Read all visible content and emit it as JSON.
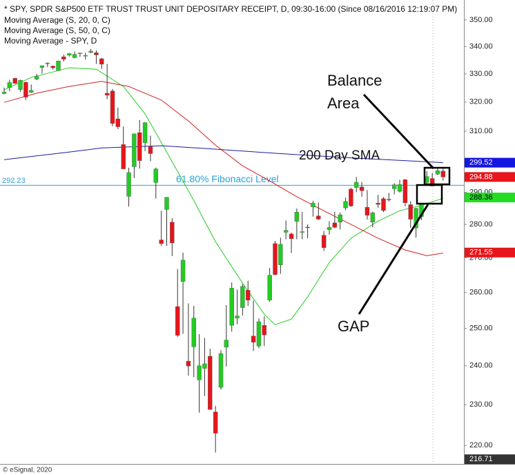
{
  "chart_data": {
    "type": "candlestick",
    "header": [
      "* SPY, SPDR S&P500 ETF TRUST TRUST UNIT DEPOSITARY RECEIPT, D, 09:30-16:00 (Since 08/16/2016 12:19:07 PM)"
    ],
    "footer": "© eSignal, 2020",
    "log_scale": true,
    "ylim": [
      215.6,
      357.7
    ],
    "yticks": [
      {
        "value": 350,
        "label": "350.00"
      },
      {
        "value": 340,
        "label": "340.00"
      },
      {
        "value": 330,
        "label": "330.00"
      },
      {
        "value": 320,
        "label": "320.00"
      },
      {
        "value": 310,
        "label": "310.00"
      },
      {
        "value": 300,
        "label": "300.00"
      },
      {
        "value": 290,
        "label": "290.00"
      },
      {
        "value": 280,
        "label": "280.00"
      },
      {
        "value": 270,
        "label": "270.00"
      },
      {
        "value": 260,
        "label": "260.00"
      },
      {
        "value": 250,
        "label": "250.00"
      },
      {
        "value": 240,
        "label": "240.00"
      },
      {
        "value": 230,
        "label": "230.00"
      },
      {
        "value": 220,
        "label": "220.00"
      }
    ],
    "up_color": "#22cc22",
    "down_color": "#e8151b",
    "open": [
      323.0,
      325.1,
      328.4,
      324.4,
      327.0,
      323.4,
      328.1,
      332.3,
      333.9,
      332.8,
      331.2,
      336.2,
      336.8,
      335.9,
      337.5,
      336.5,
      337.8,
      337.7,
      335.5,
      323.1,
      323.9,
      314.2,
      305.5,
      288.7,
      298.2,
      309.5,
      306.1,
      304.9,
      293.1,
      275.3,
      284.6,
      280.7,
      256.0,
      263.1,
      241.2,
      245.0,
      236.3,
      239.3,
      242.5,
      228.2,
      234.4,
      244.9,
      250.8,
      252.8,
      255.7,
      260.6,
      247.9,
      245.2,
      250.8,
      257.8,
      274.2,
      267.9,
      277.6,
      277.1,
      280.9,
      277.6,
      279.2,
      285.4,
      282.6,
      276.7,
      278.4,
      280.5,
      280.7,
      285.1,
      291.0,
      291.5,
      291.7,
      285.3,
      280.7,
      286.6,
      288.0,
      287.8,
      291.1,
      290.3,
      294.0,
      286.1,
      278.95,
      282.4,
      293.1,
      294.4,
      295.8,
      296.8
    ],
    "high": [
      325.1,
      327.9,
      328.6,
      327.9,
      327.2,
      326.2,
      330.0,
      333.1,
      334.2,
      333.0,
      334.8,
      337.0,
      337.6,
      338.1,
      337.7,
      337.7,
      339.1,
      338.6,
      335.8,
      333.6,
      324.6,
      318.1,
      311.6,
      297.9,
      309.2,
      313.8,
      313.1,
      308.5,
      297.9,
      284.2,
      288.5,
      281.9,
      266.7,
      271.5,
      256.9,
      256.2,
      248.4,
      247.4,
      244.5,
      229.7,
      244.1,
      256.4,
      262.8,
      260.8,
      262.4,
      263.3,
      257.7,
      252.7,
      253.3,
      267.0,
      275.0,
      276.0,
      281.2,
      277.5,
      284.9,
      283.9,
      280.0,
      287.3,
      286.8,
      278.0,
      281.0,
      283.9,
      283.7,
      288.3,
      291.4,
      294.9,
      293.3,
      290.7,
      283.9,
      289.2,
      288.5,
      289.8,
      292.9,
      294.0,
      294.2,
      287.2,
      285.1,
      286.3,
      296.75,
      296.2,
      297.9,
      297.7
    ],
    "low": [
      322.7,
      323.8,
      326.4,
      323.6,
      320.7,
      323.2,
      327.7,
      330.1,
      332.5,
      331.6,
      331.2,
      334.5,
      336.3,
      335.6,
      336.2,
      335.2,
      337.5,
      333.6,
      331.8,
      321.0,
      311.7,
      310.7,
      297.5,
      285.5,
      294.5,
      297.6,
      303.3,
      300.0,
      288.0,
      273.5,
      273.5,
      270.5,
      247.7,
      248.5,
      237.4,
      237.0,
      228.0,
      232.2,
      228.8,
      218.3,
      233.8,
      239.8,
      249.1,
      251.1,
      253.5,
      256.2,
      243.9,
      244.6,
      245.2,
      257.3,
      264.9,
      265.3,
      275.5,
      271.4,
      275.5,
      275.5,
      275.8,
      282.4,
      281.4,
      272.0,
      276.9,
      278.9,
      278.5,
      284.4,
      285.4,
      290.0,
      288.6,
      281.5,
      279.1,
      285.1,
      283.8,
      287.1,
      289.3,
      289.9,
      285.6,
      278.97,
      276.0,
      281.3,
      292.7,
      291.95,
      295.5,
      293.7
    ],
    "close": [
      323.5,
      326.9,
      326.6,
      327.7,
      321.7,
      324.1,
      329.1,
      332.9,
      333.9,
      332.2,
      334.7,
      335.3,
      337.4,
      337.1,
      337.6,
      336.7,
      338.3,
      336.9,
      333.5,
      322.4,
      312.6,
      311.5,
      297.5,
      296.3,
      309.1,
      300.2,
      312.9,
      302.5,
      297.5,
      274.2,
      288.4,
      274.4,
      248.1,
      269.3,
      239.9,
      252.8,
      240.0,
      240.5,
      228.8,
      222.95,
      243.2,
      246.8,
      261.2,
      253.4,
      261.7,
      257.8,
      246.2,
      251.8,
      248.2,
      264.9,
      265.1,
      274.0,
      278.2,
      275.7,
      283.8,
      277.8,
      279.1,
      286.6,
      281.6,
      273.0,
      279.1,
      279.1,
      282.97,
      287.1,
      285.7,
      293.2,
      290.5,
      282.8,
      283.6,
      286.2,
      284.3,
      287.7,
      292.4,
      292.5,
      286.7,
      281.6,
      284.97,
      286.3,
      295.0,
      291.97,
      296.9,
      294.88
    ],
    "lines": [
      {
        "name": "Moving Average (S, 20, 0, C)",
        "color": "#22cc22",
        "x": [
          0,
          5,
          12,
          17,
          22,
          26,
          30,
          35,
          39,
          44,
          48,
          50,
          53,
          56,
          60,
          64,
          69,
          73,
          77,
          81
        ],
        "values": [
          324.3,
          328.7,
          332.2,
          331.7,
          325.5,
          315.9,
          303.0,
          287.4,
          274.8,
          262.6,
          253.9,
          251.0,
          252.5,
          258.7,
          268.6,
          275.8,
          281.0,
          284.2,
          285.9,
          288.1
        ]
      },
      {
        "name": "Moving Average (S, 50, 0, C)",
        "color": "#d21f1f",
        "x": [
          0,
          6,
          12,
          18,
          23,
          29,
          34,
          39,
          44,
          49,
          54,
          59,
          64,
          69,
          74,
          78,
          81
        ],
        "values": [
          319.9,
          323.1,
          325.5,
          327.3,
          325.5,
          320.7,
          313.5,
          305.3,
          298.5,
          293.6,
          288.6,
          284.2,
          280.0,
          275.8,
          272.3,
          270.6,
          271.4
        ]
      },
      {
        "name": "Moving Average - SPY, D",
        "color": "#1a1aa0",
        "x": [
          0,
          12,
          18,
          29,
          37,
          50,
          63,
          76,
          81
        ],
        "values": [
          300.5,
          303.0,
          304.4,
          305.1,
          304.2,
          302.6,
          301.2,
          300.0,
          299.52
        ]
      }
    ],
    "fib_level": {
      "value": 292.23,
      "label": "61.80% Fibonacci Level",
      "color": "#2a9fd6"
    },
    "price_tags": [
      {
        "value": 299.52,
        "color": "#1515e0",
        "text_color": "#ffffff"
      },
      {
        "value": 294.88,
        "color": "#e8151b",
        "text_color": "#ffffff"
      },
      {
        "value": 288.36,
        "color": "#22dd22",
        "text_color": "#000000"
      },
      {
        "value": 271.55,
        "color": "#e8151b",
        "text_color": "#ffffff"
      },
      {
        "value": 216.71,
        "color": "#333333",
        "text_color": "#ffffff"
      }
    ],
    "annotations": {
      "balance": [
        "Balance",
        "Area"
      ],
      "sma": "200 Day SMA",
      "gap": "GAP"
    }
  }
}
